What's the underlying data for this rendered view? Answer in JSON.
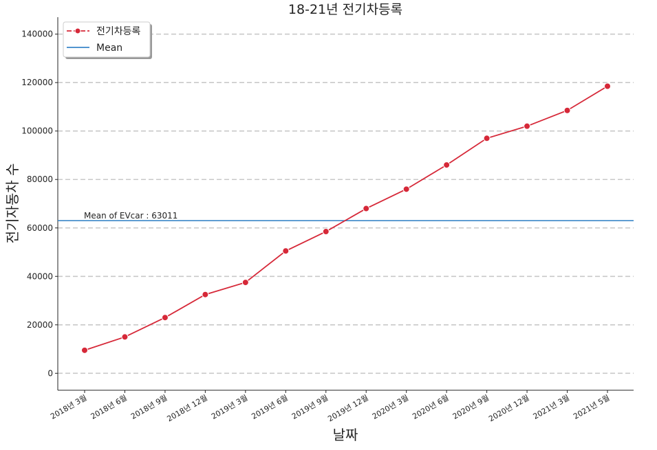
{
  "chart_data": {
    "type": "line",
    "title": "18-21년 전기차등록",
    "xlabel": "날짜",
    "ylabel": "전기자동차 수",
    "categories": [
      "2018년 3월",
      "2018년 6월",
      "2018년 9월",
      "2018년 12월",
      "2019년 3월",
      "2019년 6월",
      "2019년 9월",
      "2019년 12월",
      "2020년 3월",
      "2020년 6월",
      "2020년 9월",
      "2020년 12월",
      "2021년 3월",
      "2021년 5월"
    ],
    "series": [
      {
        "name": "전기차등록",
        "color": "#d62838",
        "values": [
          9500,
          15000,
          23000,
          32500,
          37500,
          50500,
          58500,
          68000,
          76000,
          86000,
          97000,
          102000,
          108500,
          118500
        ]
      }
    ],
    "mean": {
      "name": "Mean",
      "value": 63011,
      "color": "#3a86c8",
      "annotation": "Mean of EVcar : 63011"
    },
    "ylim": [
      -7000,
      147000
    ],
    "yticks": [
      0,
      20000,
      40000,
      60000,
      80000,
      100000,
      120000,
      140000
    ],
    "ytick_labels": [
      "0",
      "20000",
      "40000",
      "60000",
      "80000",
      "100000",
      "120000",
      "140000"
    ],
    "grid": "horizontal dashed",
    "legend_position": "top-left"
  }
}
